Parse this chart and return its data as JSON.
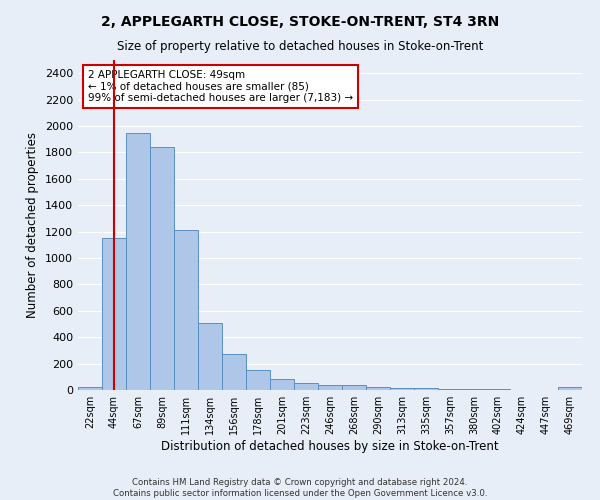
{
  "title": "2, APPLEGARTH CLOSE, STOKE-ON-TRENT, ST4 3RN",
  "subtitle": "Size of property relative to detached houses in Stoke-on-Trent",
  "xlabel": "Distribution of detached houses by size in Stoke-on-Trent",
  "ylabel": "Number of detached properties",
  "categories": [
    "22sqm",
    "44sqm",
    "67sqm",
    "89sqm",
    "111sqm",
    "134sqm",
    "156sqm",
    "178sqm",
    "201sqm",
    "223sqm",
    "246sqm",
    "268sqm",
    "290sqm",
    "313sqm",
    "335sqm",
    "357sqm",
    "380sqm",
    "402sqm",
    "424sqm",
    "447sqm",
    "469sqm"
  ],
  "values": [
    25,
    1150,
    1950,
    1840,
    1210,
    510,
    270,
    155,
    80,
    50,
    40,
    35,
    20,
    15,
    12,
    8,
    5,
    5,
    3,
    3,
    20
  ],
  "bar_color": "#aec6e8",
  "bar_edge_color": "#5a8fc2",
  "vline_x": 1,
  "vline_color": "#cc0000",
  "annotation_text": "2 APPLEGARTH CLOSE: 49sqm\n← 1% of detached houses are smaller (85)\n99% of semi-detached houses are larger (7,183) →",
  "annotation_box_color": "#cc0000",
  "ylim": [
    0,
    2500
  ],
  "yticks": [
    0,
    200,
    400,
    600,
    800,
    1000,
    1200,
    1400,
    1600,
    1800,
    2000,
    2200,
    2400
  ],
  "footer_line1": "Contains HM Land Registry data © Crown copyright and database right 2024.",
  "footer_line2": "Contains public sector information licensed under the Open Government Licence v3.0.",
  "background_color": "#e8eef7",
  "plot_bg_color": "#e8eef7"
}
